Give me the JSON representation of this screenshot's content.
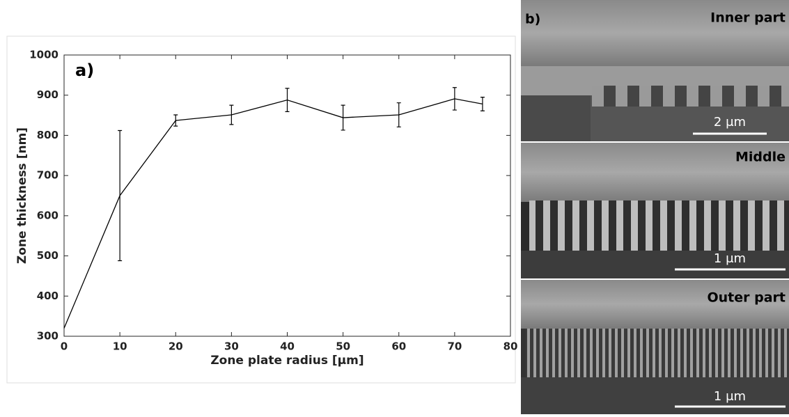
{
  "chart_data": {
    "type": "line",
    "annotation": "a)",
    "x_label": "Zone plate radius [μm]",
    "y_label": "Zone thickness [nm]",
    "x": [
      0,
      10,
      20,
      30,
      40,
      50,
      60,
      70,
      75
    ],
    "series": [
      {
        "color": "#000000",
        "values": [
          320,
          650,
          837,
          851,
          888,
          844,
          851,
          891,
          878
        ],
        "errors": [
          null,
          162,
          14,
          24,
          29,
          31,
          30,
          28,
          17
        ]
      }
    ],
    "xlim": [
      0,
      80
    ],
    "xticks": [
      0,
      10,
      20,
      30,
      40,
      50,
      60,
      70,
      80
    ],
    "ylim": [
      300,
      1000
    ],
    "yticks": [
      300,
      400,
      500,
      600,
      700,
      800,
      900,
      1000
    ]
  },
  "panel_b": {
    "label": "b)",
    "images": [
      {
        "title": "Inner part",
        "scale_bar": "2 μm"
      },
      {
        "title": "Middle",
        "scale_bar": "1 μm"
      },
      {
        "title": "Outer part",
        "scale_bar": "1 μm"
      }
    ]
  }
}
